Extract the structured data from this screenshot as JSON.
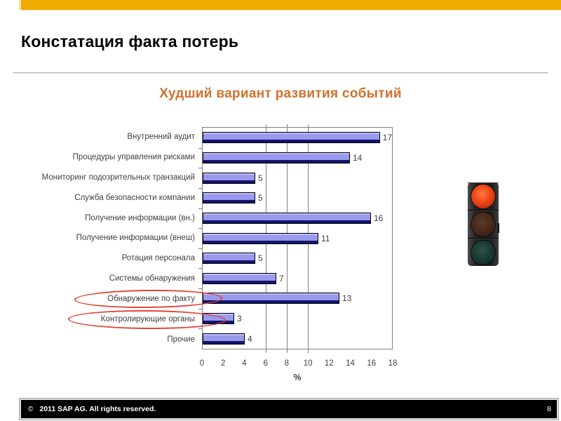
{
  "theme": {
    "accent_bar": "#F0AB00",
    "accent_bar_edge": "#F7E0A0",
    "title_color": "#000000",
    "subtitle_color": "#D2702D",
    "bar_fill": "#9999ED",
    "bar_top_highlight": "#BBBBFA",
    "bar_bottom_shade": "#13136B",
    "chart_text": "#3F3F3F",
    "grid_color": "#808080",
    "ellipse_red": "#E0463C",
    "footer_bg": "#000000",
    "footer_text": "#FFFFFF",
    "lamp_red_lit": "#EF4518",
    "lamp_amber_off": "#45281A",
    "lamp_green_off": "#173731"
  },
  "header": {
    "title": "Констатация факта потерь"
  },
  "subtitle": "Худший вариант развития событий",
  "chart_data": {
    "type": "bar",
    "orientation": "horizontal",
    "title": "Худший вариант развития событий",
    "categories": [
      "Внутренний аудит",
      "Процедуры управления рисками",
      "Мониторинг подозрительных транзакций",
      "Служба безопасности компании",
      "Получение информации (вн.)",
      "Получение информации (внеш)",
      "Ротация персонала",
      "Системы обнаружения",
      "Обнаружение по факту",
      "Контролирующие органы",
      "Прочие"
    ],
    "values": [
      17,
      14,
      5,
      5,
      16,
      11,
      5,
      7,
      13,
      3,
      4
    ],
    "xlabel": "%",
    "xlim": [
      0,
      18
    ],
    "xticks": [
      0,
      2,
      4,
      6,
      8,
      10,
      12,
      14,
      16,
      18
    ],
    "gridlines_at": [
      6,
      8,
      10
    ],
    "legend": "none",
    "grid": "vertical-partial",
    "annotations": {
      "circled_categories": [
        "Обнаружение по факту",
        "Контролирующие органы"
      ]
    }
  },
  "traffic_light": {
    "lit_lamp": "red",
    "lamps": [
      "red",
      "amber",
      "green"
    ]
  },
  "footer": {
    "copyright_symbol": "©",
    "copyright_text": "2011 SAP AG. All rights reserved.",
    "page_number": "8"
  }
}
